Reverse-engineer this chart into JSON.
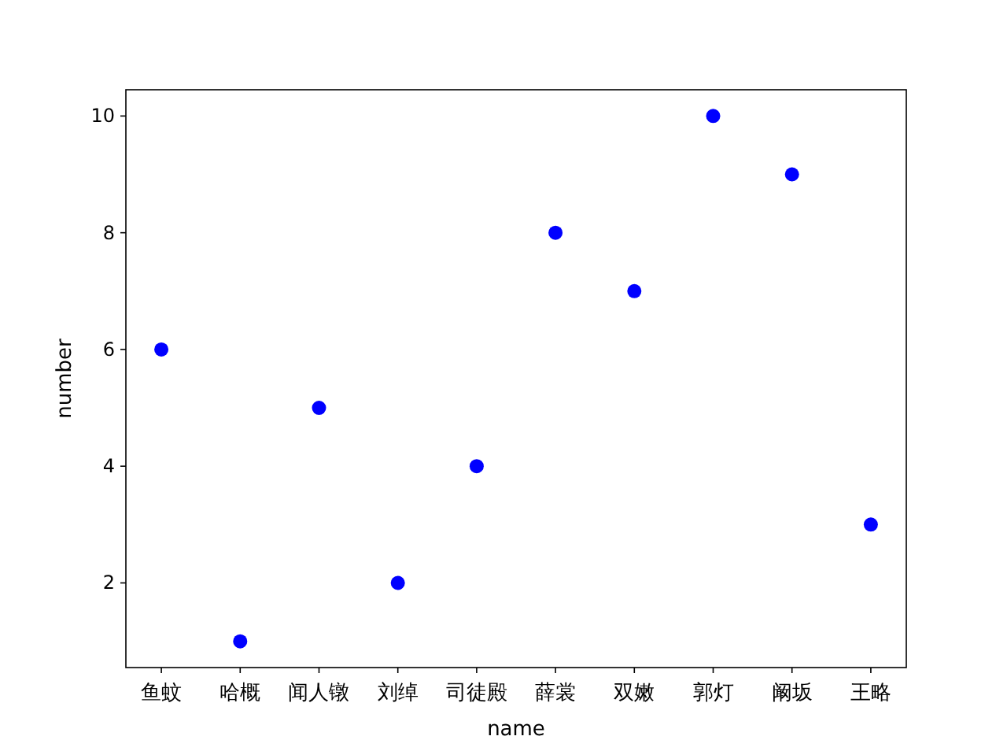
{
  "chart_data": {
    "type": "scatter",
    "xlabel": "name",
    "ylabel": "number",
    "categories": [
      "鱼蚊",
      "哈概",
      "闻人镦",
      "刘绰",
      "司徒殿",
      "薛裳",
      "双嫩",
      "郭灯",
      "阚坂",
      "王略"
    ],
    "values": [
      6,
      1,
      5,
      2,
      4,
      8,
      7,
      10,
      9,
      3
    ],
    "color": "#0000ff",
    "marker": "circle",
    "ylim": [
      0.55,
      10.45
    ],
    "yticks": [
      2,
      4,
      6,
      8,
      10
    ]
  }
}
